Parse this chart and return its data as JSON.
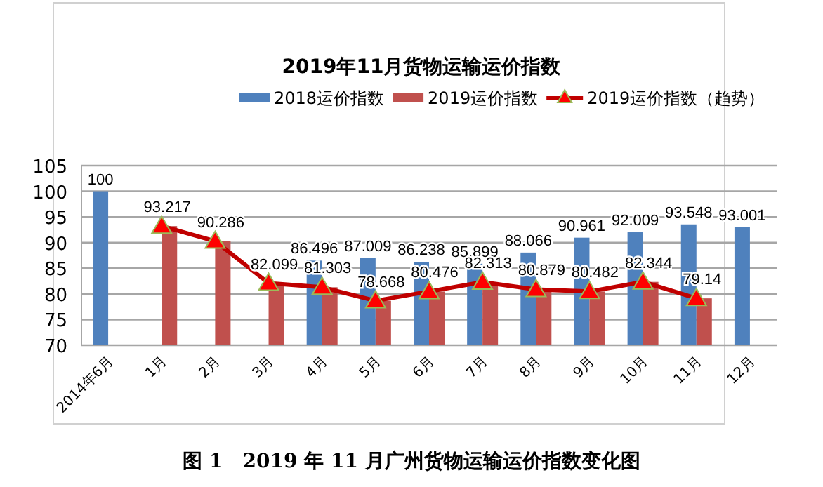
{
  "chart_data": {
    "type": "bar",
    "title": "2019年11月货物运输运价指数",
    "categories": [
      "2014年6月",
      "1月",
      "2月",
      "3月",
      "4月",
      "5月",
      "6月",
      "7月",
      "8月",
      "9月",
      "10月",
      "11月",
      "12月"
    ],
    "series": [
      {
        "name": "2018运价指数",
        "color": "#4f81bd",
        "values": [
          100,
          null,
          null,
          null,
          86.496,
          87.009,
          86.238,
          85.899,
          88.066,
          90.961,
          92.009,
          93.548,
          93.001
        ],
        "value_labels": [
          "100",
          null,
          null,
          null,
          "86.496",
          "87.009",
          "86.238",
          "85.899",
          "88.066",
          "90.961",
          "92.009",
          "93.548",
          "93.001"
        ]
      },
      {
        "name": "2019运价指数",
        "color": "#c0504d",
        "values": [
          null,
          93.217,
          90.286,
          82.099,
          81.303,
          78.668,
          80.476,
          82.313,
          80.879,
          80.482,
          82.344,
          79.14,
          null
        ]
      },
      {
        "name": "2019运价指数（趋势）",
        "type": "line",
        "color": "#c00000",
        "marker": "triangle",
        "values": [
          null,
          93.217,
          90.286,
          82.099,
          81.303,
          78.668,
          80.476,
          82.313,
          80.879,
          80.482,
          82.344,
          79.14,
          null
        ],
        "value_labels": [
          null,
          "93.217",
          "90.286",
          "82.099",
          "81.303",
          "78.668",
          "80.476",
          "82.313",
          "80.879",
          "80.482",
          "82.344",
          "79.14",
          null
        ]
      }
    ],
    "ylim": [
      70,
      105
    ],
    "yticks": [
      70,
      75,
      80,
      85,
      90,
      95,
      100,
      105
    ],
    "grid": "y",
    "legend": "top right",
    "annotations": [
      "图 1　2019 年 11 月广州货物运输运价指数变化图"
    ]
  }
}
